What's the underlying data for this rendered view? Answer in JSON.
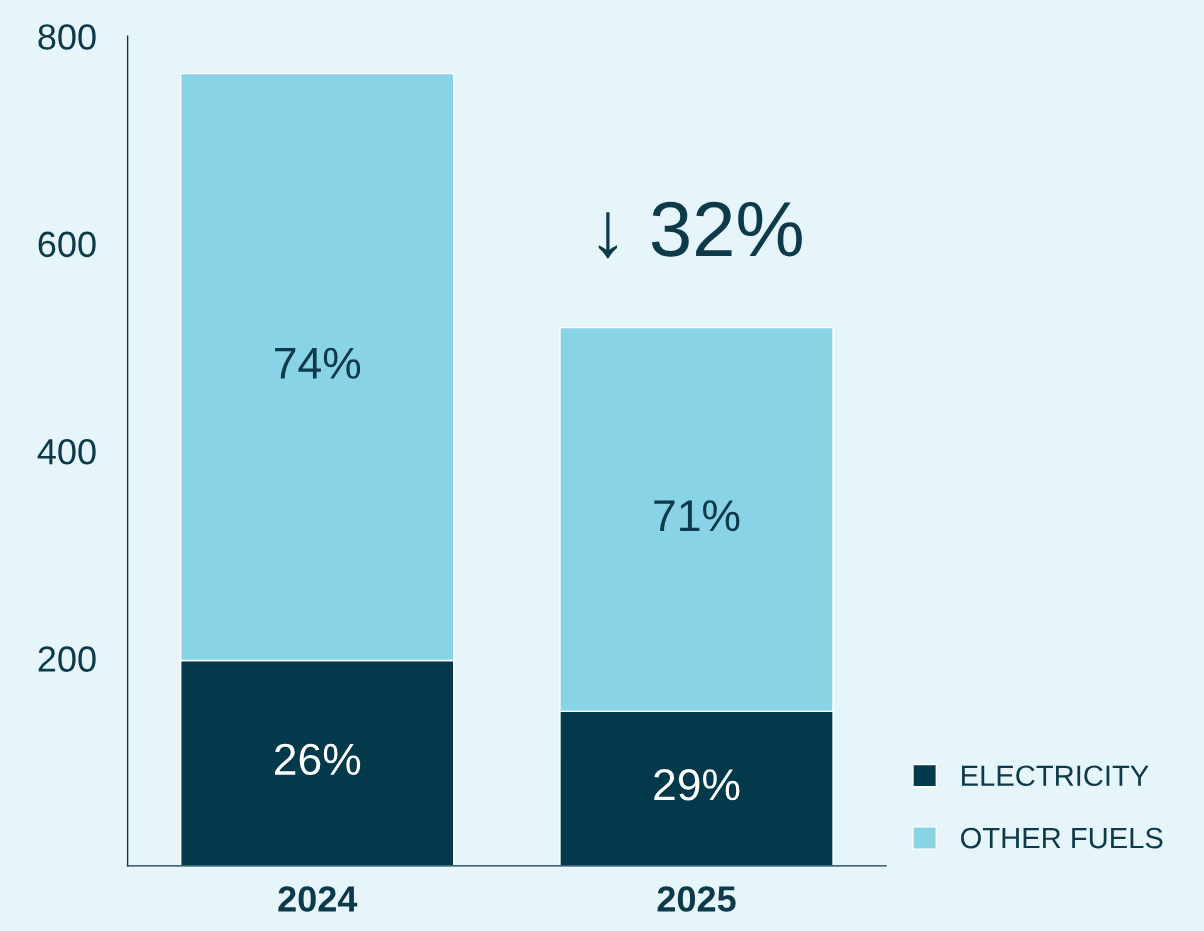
{
  "chart_data": {
    "type": "bar",
    "stacked": true,
    "categories": [
      "2024",
      "2025"
    ],
    "series": [
      {
        "name": "ELECTRICITY",
        "color": "#023a4c",
        "values": [
          198,
          149
        ]
      },
      {
        "name": "OTHER FUELS",
        "color": "#89d3e6",
        "values": [
          566,
          370
        ]
      }
    ],
    "ylim": [
      0,
      800
    ],
    "yticks": [
      {
        "value": 0,
        "label": null
      },
      200,
      400,
      600,
      800
    ],
    "annotations": [
      {
        "text": "↓ 32%",
        "x": "2025",
        "y": 519
      },
      "26%",
      "74%",
      "29%",
      "71%"
    ],
    "legend": "bottom right",
    "grid": false
  }
}
